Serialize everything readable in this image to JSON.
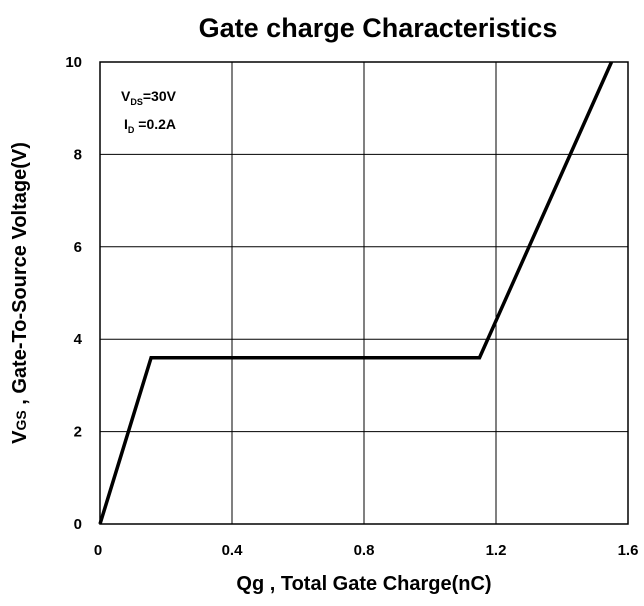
{
  "chart_data": {
    "type": "line",
    "title": "Gate charge Characteristics",
    "xlabel": "Qg , Total Gate Charge(nC)",
    "ylabel": {
      "main": "V",
      "sub": "GS",
      "rest": " , Gate-To-Source Voltage(V)"
    },
    "xlim": [
      0,
      1.6
    ],
    "ylim": [
      0,
      10
    ],
    "xticks": [
      "0",
      "0.4",
      "0.8",
      "1.2",
      "1.6"
    ],
    "yticks": [
      "0",
      "2",
      "4",
      "6",
      "8",
      "10"
    ],
    "grid": true,
    "annotations": [
      {
        "main": "V",
        "sub": "DS",
        "rest": "=30V"
      },
      {
        "main": "I",
        "sub": "D",
        "rest": " =0.2A"
      }
    ],
    "series": [
      {
        "x": [
          0,
          0.155,
          1.15,
          1.55
        ],
        "y": [
          0,
          3.6,
          3.6,
          10
        ]
      }
    ]
  }
}
